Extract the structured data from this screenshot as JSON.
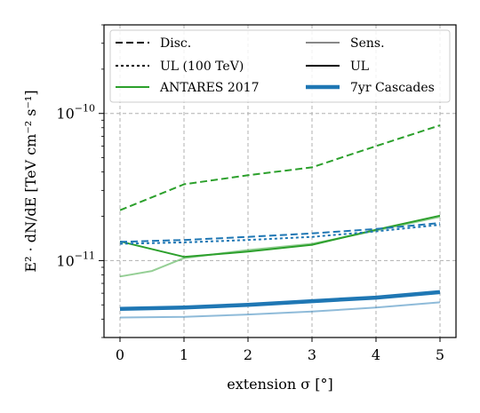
{
  "chart_data": {
    "type": "line",
    "xlabel": "extension σ [°]",
    "ylabel": "E² · dN/dE  [TeV cm⁻² s⁻¹]",
    "xlim": [
      -0.25,
      5.25
    ],
    "ylim": [
      3e-12,
      4e-10
    ],
    "yscale": "log",
    "xticks": [
      "0",
      "1",
      "2",
      "3",
      "4",
      "5"
    ],
    "yticks": [
      {
        "value": 1e-11,
        "base": "10",
        "exp": "−11"
      },
      {
        "value": 1e-10,
        "base": "10",
        "exp": "−10"
      }
    ],
    "grid": true,
    "legend": {
      "placement": "top",
      "entries": [
        {
          "label": "Disc.",
          "color": "#000000",
          "style": "dashed",
          "width": "thin"
        },
        {
          "label": "Sens.",
          "color": "#888888",
          "style": "solid",
          "width": "thin"
        },
        {
          "label": "UL (100 TeV)",
          "color": "#000000",
          "style": "dotted",
          "width": "thin"
        },
        {
          "label": "UL",
          "color": "#000000",
          "style": "solid",
          "width": "thin"
        },
        {
          "label": "ANTARES 2017",
          "color": "#2ca02c",
          "style": "solid",
          "width": "thin"
        },
        {
          "label": "7yr Cascades",
          "color": "#1f77b4",
          "style": "solid",
          "width": "thick"
        }
      ]
    },
    "series": [
      {
        "group": "ANTARES 2017",
        "kind": "Disc.",
        "color": "#2ca02c",
        "style": "dashed",
        "width": "thin",
        "alpha": 1,
        "x": [
          0,
          1,
          2,
          3,
          4,
          5
        ],
        "y": [
          2.2e-11,
          3.3e-11,
          3.8e-11,
          4.3e-11,
          6e-11,
          8.3e-11
        ]
      },
      {
        "group": "ANTARES 2017",
        "kind": "UL",
        "color": "#2ca02c",
        "style": "solid",
        "width": "thin",
        "alpha": 1,
        "x": [
          0,
          1,
          2,
          3,
          4,
          5
        ],
        "y": [
          1.35e-11,
          1.06e-11,
          1.15e-11,
          1.28e-11,
          1.62e-11,
          2.02e-11
        ]
      },
      {
        "group": "ANTARES 2017",
        "kind": "Sens.",
        "color": "#2ca02c",
        "style": "solid",
        "width": "thin",
        "alpha": 0.5,
        "x": [
          0,
          0.5,
          1,
          2,
          3,
          4,
          5
        ],
        "y": [
          7.8e-12,
          8.5e-12,
          1.04e-11,
          1.18e-11,
          1.3e-11,
          1.6e-11,
          1.98e-11
        ]
      },
      {
        "group": "7yr Cascades",
        "kind": "Disc.",
        "color": "#1f77b4",
        "style": "dashed",
        "width": "thin",
        "alpha": 1,
        "x": [
          0,
          1,
          2,
          3,
          4,
          5
        ],
        "y": [
          1.34e-11,
          1.38e-11,
          1.45e-11,
          1.53e-11,
          1.64e-11,
          1.8e-11
        ]
      },
      {
        "group": "7yr Cascades",
        "kind": "UL (100 TeV)",
        "color": "#1f77b4",
        "style": "dotted",
        "width": "thin",
        "alpha": 1,
        "x": [
          0,
          1,
          2,
          3,
          4,
          5
        ],
        "y": [
          1.3e-11,
          1.33e-11,
          1.38e-11,
          1.45e-11,
          1.58e-11,
          1.75e-11
        ]
      },
      {
        "group": "7yr Cascades",
        "kind": "UL",
        "color": "#1f77b4",
        "style": "solid",
        "width": "thick",
        "alpha": 1,
        "x": [
          0,
          1,
          2,
          3,
          4,
          5
        ],
        "y": [
          4.7e-12,
          4.8e-12,
          5e-12,
          5.3e-12,
          5.6e-12,
          6.1e-12
        ]
      },
      {
        "group": "7yr Cascades",
        "kind": "Sens.",
        "color": "#1f77b4",
        "style": "solid",
        "width": "thin",
        "alpha": 0.5,
        "x": [
          0,
          1,
          2,
          3,
          4,
          5
        ],
        "y": [
          4.1e-12,
          4.15e-12,
          4.3e-12,
          4.5e-12,
          4.8e-12,
          5.2e-12
        ]
      }
    ]
  }
}
